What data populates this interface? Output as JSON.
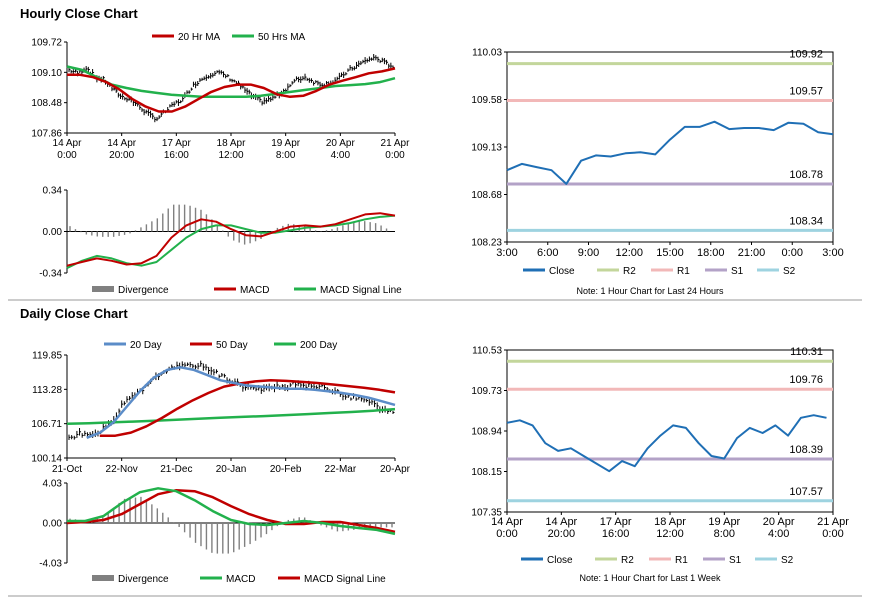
{
  "sections": {
    "hourly_title": "Hourly Close Chart",
    "daily_title": "Daily Close Chart"
  },
  "colors": {
    "ma_short": "#c00000",
    "ma_long": "#22b14c",
    "ma_blue": "#5b8cc8",
    "close": "#1f6fb5",
    "r2": "#c3d69b",
    "r1": "#f2b8b8",
    "s1": "#b3a2c7",
    "s2": "#9ed3e0",
    "divergence": "#808080",
    "divider": "#999999"
  },
  "chart_data": [
    {
      "id": "hourly_price",
      "type": "line",
      "legend": [
        "20 Hr MA",
        "50 Hrs MA"
      ],
      "y_ticks": [
        "109.72",
        "109.10",
        "108.48",
        "107.86"
      ],
      "ylim": [
        107.86,
        109.72
      ],
      "x_ticks": [
        [
          "14 Apr",
          "0:00"
        ],
        [
          "14 Apr",
          "20:00"
        ],
        [
          "17 Apr",
          "16:00"
        ],
        [
          "18 Apr",
          "12:00"
        ],
        [
          "19 Apr",
          "8:00"
        ],
        [
          "20 Apr",
          "4:00"
        ],
        [
          "21 Apr",
          "0:00"
        ]
      ],
      "close": [
        109.15,
        109.08,
        109.2,
        109.0,
        108.95,
        108.75,
        108.6,
        108.55,
        108.4,
        108.25,
        108.15,
        108.3,
        108.45,
        108.55,
        108.8,
        108.95,
        109.05,
        109.1,
        109.02,
        108.9,
        108.75,
        108.6,
        108.5,
        108.55,
        108.65,
        108.8,
        108.95,
        109.0,
        108.9,
        108.85,
        108.9,
        109.0,
        109.15,
        109.25,
        109.35,
        109.4,
        109.3,
        109.22
      ],
      "series": [
        {
          "name": "20 Hr MA",
          "values": [
            109.05,
            109.05,
            109.0,
            108.9,
            108.75,
            108.55,
            108.4,
            108.3,
            108.3,
            108.4,
            108.55,
            108.7,
            108.8,
            108.85,
            108.85,
            108.78,
            108.65,
            108.6,
            108.62,
            108.72,
            108.85,
            108.93,
            109.0,
            109.08,
            109.12,
            109.18
          ]
        },
        {
          "name": "50 Hrs MA",
          "values": [
            109.22,
            109.15,
            109.0,
            108.85,
            108.78,
            108.72,
            108.68,
            108.64,
            108.62,
            108.6,
            108.6,
            108.6,
            108.6,
            108.62,
            108.66,
            108.7,
            108.74,
            108.78,
            108.82,
            108.84,
            108.86,
            108.9,
            108.98
          ]
        }
      ]
    },
    {
      "id": "hourly_macd",
      "type": "line",
      "legend": [
        "Divergence",
        "MACD",
        "MACD Signal Line"
      ],
      "y_ticks": [
        "0.34",
        "0.00",
        "-0.34"
      ],
      "ylim": [
        -0.34,
        0.34
      ],
      "series": [
        {
          "name": "MACD",
          "values": [
            -0.28,
            -0.25,
            -0.22,
            -0.24,
            -0.27,
            -0.26,
            -0.2,
            -0.05,
            0.05,
            0.1,
            0.08,
            0.02,
            -0.03,
            -0.04,
            0.0,
            0.04,
            0.05,
            0.04,
            0.06,
            0.1,
            0.14,
            0.15,
            0.13
          ]
        },
        {
          "name": "MACD Signal Line",
          "values": [
            -0.3,
            -0.24,
            -0.2,
            -0.22,
            -0.26,
            -0.28,
            -0.25,
            -0.15,
            -0.05,
            0.02,
            0.05,
            0.05,
            0.02,
            -0.01,
            -0.01,
            0.01,
            0.03,
            0.04,
            0.05,
            0.07,
            0.1,
            0.12,
            0.13
          ]
        }
      ]
    },
    {
      "id": "hourly_pivot",
      "type": "line",
      "y_ticks": [
        "110.03",
        "109.58",
        "109.13",
        "108.68",
        "108.23"
      ],
      "ylim": [
        108.23,
        110.03
      ],
      "x_ticks": [
        "3:00",
        "6:00",
        "9:00",
        "12:00",
        "15:00",
        "18:00",
        "21:00",
        "0:00",
        "3:00"
      ],
      "levels": [
        {
          "name": "R2",
          "value": 109.92,
          "label": "109.92"
        },
        {
          "name": "R1",
          "value": 109.57,
          "label": "109.57"
        },
        {
          "name": "S1",
          "value": 108.78,
          "label": "108.78"
        },
        {
          "name": "S2",
          "value": 108.34,
          "label": "108.34"
        }
      ],
      "close": [
        108.91,
        108.97,
        108.94,
        108.91,
        108.78,
        109.0,
        109.05,
        109.04,
        109.07,
        109.08,
        109.06,
        109.2,
        109.32,
        109.32,
        109.37,
        109.3,
        109.31,
        109.31,
        109.29,
        109.36,
        109.35,
        109.27,
        109.25
      ],
      "legend": [
        "Close",
        "R2",
        "R1",
        "S1",
        "S2"
      ],
      "note": "Note: 1 Hour Chart for Last 24 Hours"
    },
    {
      "id": "daily_price",
      "type": "line",
      "legend": [
        "20 Day",
        "50 Day",
        "200 Day"
      ],
      "y_ticks": [
        "119.85",
        "113.28",
        "106.71",
        "100.14"
      ],
      "ylim": [
        100.14,
        119.85
      ],
      "x_ticks": [
        "21-Oct",
        "22-Nov",
        "21-Dec",
        "20-Jan",
        "20-Feb",
        "22-Mar",
        "20-Apr"
      ],
      "close": [
        104.0,
        104.8,
        104.5,
        105.5,
        107.0,
        110.5,
        112.0,
        113.5,
        115.5,
        117.0,
        117.5,
        117.8,
        118.0,
        117.2,
        116.0,
        115.0,
        114.0,
        113.5,
        113.2,
        113.8,
        113.5,
        114.5,
        114.0,
        113.8,
        113.5,
        112.5,
        111.8,
        111.5,
        110.8,
        109.2,
        108.9
      ],
      "series": [
        {
          "name": "20 Day",
          "values": [
            104.0,
            105.0,
            107.0,
            110.0,
            113.0,
            115.5,
            117.0,
            117.5,
            117.0,
            116.0,
            115.0,
            114.5,
            114.0,
            113.8,
            113.6,
            113.4,
            113.4,
            113.2,
            112.9,
            112.6,
            112.2,
            111.7,
            111.0,
            110.3
          ]
        },
        {
          "name": "50 Day",
          "values": [
            104.4,
            104.4,
            105.0,
            106.2,
            107.8,
            109.6,
            111.2,
            112.6,
            113.8,
            114.4,
            114.8,
            115.0,
            114.9,
            114.7,
            114.5,
            114.2,
            113.9,
            113.6,
            113.2,
            112.7
          ]
        },
        {
          "name": "200 Day",
          "values": [
            106.71,
            106.8,
            106.95,
            107.1,
            107.25,
            107.45,
            107.65,
            107.85,
            108.0,
            108.15,
            108.35,
            108.55,
            108.75,
            108.95,
            109.2,
            109.5
          ]
        }
      ]
    },
    {
      "id": "daily_macd",
      "type": "line",
      "legend": [
        "Divergence",
        "MACD",
        "MACD Signal Line"
      ],
      "y_ticks": [
        "4.03",
        "0.00",
        "-4.03"
      ],
      "ylim": [
        -4.03,
        4.03
      ],
      "series": [
        {
          "name": "MACD",
          "values": [
            0.2,
            0.2,
            0.7,
            2.0,
            3.1,
            3.5,
            3.2,
            2.3,
            1.2,
            0.3,
            -0.1,
            -0.2,
            0.0,
            0.2,
            0.0,
            -0.3,
            -0.5,
            -0.7,
            -1.1
          ]
        },
        {
          "name": "MACD Signal Line",
          "values": [
            0.0,
            0.1,
            0.3,
            0.9,
            1.9,
            2.9,
            3.3,
            3.2,
            2.6,
            1.7,
            0.9,
            0.3,
            -0.1,
            -0.1,
            0.1,
            0.1,
            -0.2,
            -0.5,
            -0.9
          ]
        }
      ]
    },
    {
      "id": "daily_pivot",
      "type": "line",
      "y_ticks": [
        "110.53",
        "109.73",
        "108.94",
        "108.15",
        "107.35"
      ],
      "ylim": [
        107.35,
        110.53
      ],
      "x_ticks": [
        [
          "14 Apr",
          "0:00"
        ],
        [
          "14 Apr",
          "20:00"
        ],
        [
          "17 Apr",
          "16:00"
        ],
        [
          "18 Apr",
          "12:00"
        ],
        [
          "19 Apr",
          "8:00"
        ],
        [
          "20 Apr",
          "4:00"
        ],
        [
          "21 Apr",
          "0:00"
        ]
      ],
      "levels": [
        {
          "name": "R2",
          "value": 110.31,
          "label": "110.31"
        },
        {
          "name": "R1",
          "value": 109.76,
          "label": "109.76"
        },
        {
          "name": "S1",
          "value": 108.39,
          "label": "108.39"
        },
        {
          "name": "S2",
          "value": 107.57,
          "label": "107.57"
        }
      ],
      "close": [
        109.1,
        109.15,
        109.05,
        108.7,
        108.55,
        108.6,
        108.45,
        108.3,
        108.15,
        108.35,
        108.25,
        108.6,
        108.85,
        109.05,
        109.0,
        108.7,
        108.45,
        108.4,
        108.8,
        109.0,
        108.9,
        109.05,
        108.85,
        109.2,
        109.25,
        109.2
      ],
      "legend": [
        "Close",
        "R2",
        "R1",
        "S1",
        "S2"
      ],
      "note": "Note: 1 Hour Chart for Last 1 Week"
    }
  ]
}
